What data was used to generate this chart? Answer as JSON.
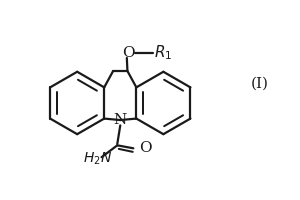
{
  "background_color": "#ffffff",
  "line_color": "#1a1a1a",
  "line_width": 1.6,
  "figsize": [
    3.0,
    2.0
  ],
  "dpi": 100,
  "xlim": [
    0,
    10
  ],
  "ylim": [
    0,
    6.5
  ],
  "label_I": "(I)",
  "label_O_ether": "O",
  "label_R1": "R",
  "label_N": "N",
  "label_H2N": "H",
  "label_O_carbonyl": "O",
  "font_size": 10
}
